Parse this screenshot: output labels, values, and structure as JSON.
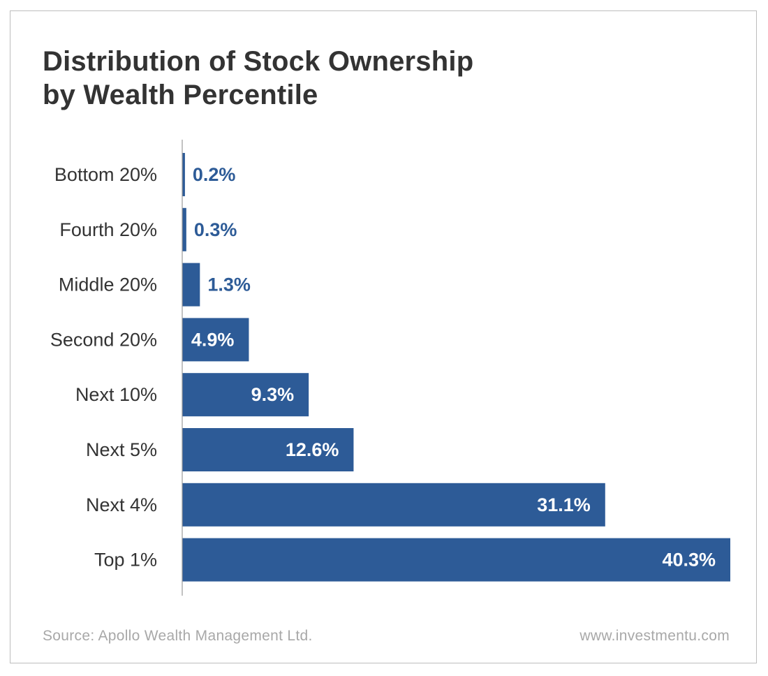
{
  "title_lines": [
    "Distribution of Stock Ownership",
    "by Wealth Percentile"
  ],
  "footer": {
    "source": "Source: Apollo Wealth Management Ltd.",
    "website": "www.investmentu.com"
  },
  "colors": {
    "bar": "#2d5b97",
    "label_outside": "#2d5b97",
    "label_inside": "#ffffff",
    "axis": "#9a9a9a",
    "category_text": "#333333"
  },
  "chart_data": {
    "type": "bar",
    "orientation": "horizontal",
    "title": "Distribution of Stock Ownership by Wealth Percentile",
    "categories": [
      "Bottom 20%",
      "Fourth 20%",
      "Middle 20%",
      "Second 20%",
      "Next 10%",
      "Next 5%",
      "Next 4%",
      "Top 1%"
    ],
    "values": [
      0.2,
      0.3,
      1.3,
      4.9,
      9.3,
      12.6,
      31.1,
      40.3
    ],
    "value_labels": [
      "0.2%",
      "0.3%",
      "1.3%",
      "4.9%",
      "9.3%",
      "12.6%",
      "31.1%",
      "40.3%"
    ],
    "unit": "%",
    "xlim": [
      0,
      40.3
    ],
    "grid": false,
    "legend": "none"
  }
}
